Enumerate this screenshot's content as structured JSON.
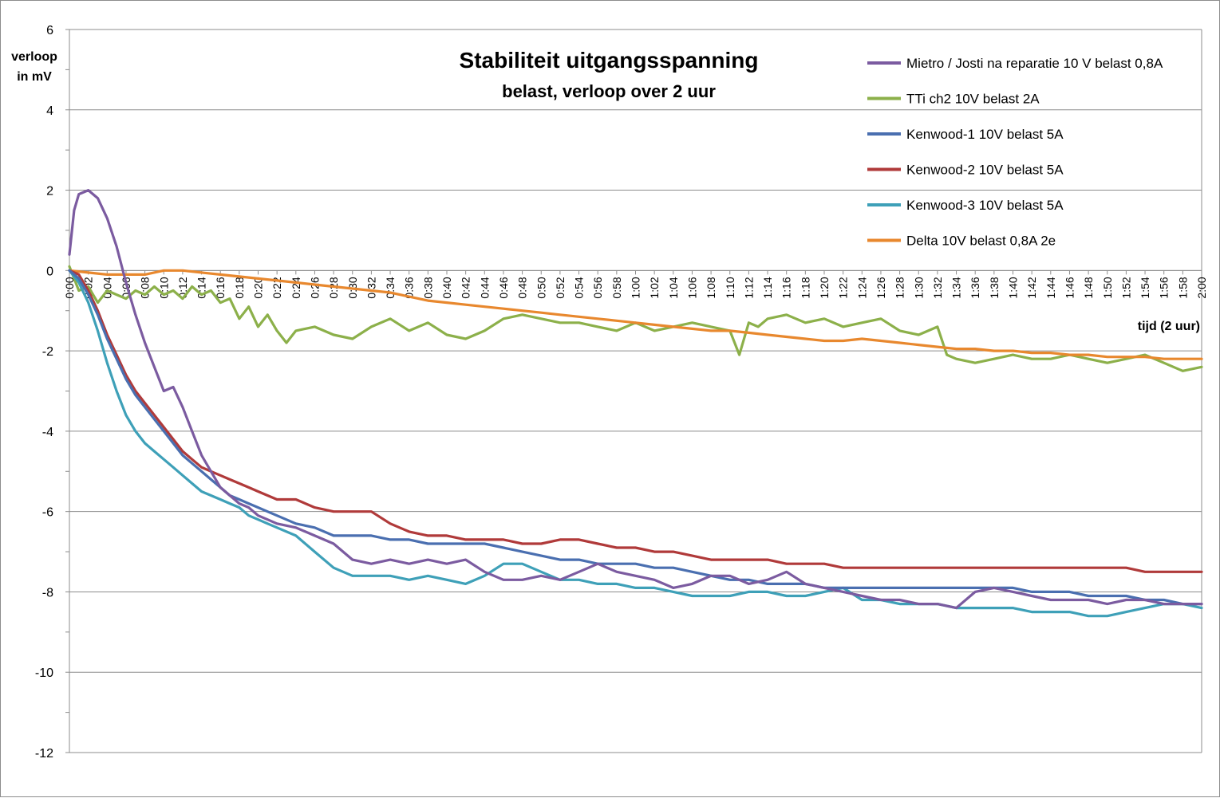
{
  "chart_data": {
    "type": "line",
    "title": "Stabiliteit uitgangsspanning",
    "subtitle": "belast, verloop over 2 uur",
    "ylabel_line1": "verloop",
    "ylabel_line2": "in mV",
    "xlabel": "tijd  (2 uur)",
    "ylim": [
      -12,
      6
    ],
    "y_major_step": 2,
    "y_ticks": [
      "6",
      "4",
      "2",
      "0",
      "-2",
      "-4",
      "-6",
      "-8",
      "-10",
      "-12"
    ],
    "x_range_minutes": [
      0,
      120
    ],
    "x_tick_step_minutes": 2,
    "x_tick_labels": [
      "0:00",
      "0:02",
      "0:04",
      "0:06",
      "0:08",
      "0:10",
      "0:12",
      "0:14",
      "0:16",
      "0:18",
      "0:20",
      "0:22",
      "0:24",
      "0:26",
      "0:28",
      "0:30",
      "0:32",
      "0:34",
      "0:36",
      "0:38",
      "0:40",
      "0:42",
      "0:44",
      "0:46",
      "0:48",
      "0:50",
      "0:52",
      "0:54",
      "0:56",
      "0:58",
      "1:00",
      "1:02",
      "1:04",
      "1:06",
      "1:08",
      "1:10",
      "1:12",
      "1:14",
      "1:16",
      "1:18",
      "1:20",
      "1:22",
      "1:24",
      "1:26",
      "1:28",
      "1:30",
      "1:32",
      "1:34",
      "1:36",
      "1:38",
      "1:40",
      "1:42",
      "1:44",
      "1:46",
      "1:48",
      "1:50",
      "1:52",
      "1:54",
      "1:56",
      "1:58",
      "2:00"
    ],
    "grid": "horizontal major gridlines",
    "legend_position": "top-right",
    "series": [
      {
        "name": "Mietro / Josti na reparatie 10 V belast 0,8A",
        "color": "#7B5BA0",
        "x": [
          0,
          0.5,
          1,
          2,
          3,
          4,
          5,
          6,
          7,
          8,
          9,
          10,
          11,
          12,
          13,
          14,
          15,
          16,
          17,
          18,
          19,
          20,
          21,
          22,
          24,
          26,
          28,
          30,
          32,
          34,
          36,
          38,
          40,
          42,
          44,
          46,
          48,
          50,
          52,
          54,
          56,
          58,
          60,
          62,
          64,
          66,
          68,
          70,
          72,
          74,
          76,
          78,
          80,
          82,
          84,
          86,
          88,
          90,
          92,
          94,
          96,
          98,
          100,
          102,
          104,
          106,
          108,
          110,
          112,
          114,
          116,
          118,
          120
        ],
        "y": [
          0.4,
          1.5,
          1.9,
          2.0,
          1.8,
          1.3,
          0.6,
          -0.3,
          -1.1,
          -1.8,
          -2.4,
          -3.0,
          -2.9,
          -3.4,
          -4.0,
          -4.6,
          -5.0,
          -5.4,
          -5.6,
          -5.8,
          -5.9,
          -6.1,
          -6.2,
          -6.3,
          -6.4,
          -6.6,
          -6.8,
          -7.2,
          -7.3,
          -7.2,
          -7.3,
          -7.2,
          -7.3,
          -7.2,
          -7.5,
          -7.7,
          -7.7,
          -7.6,
          -7.7,
          -7.5,
          -7.3,
          -7.5,
          -7.6,
          -7.7,
          -7.9,
          -7.8,
          -7.6,
          -7.6,
          -7.8,
          -7.7,
          -7.5,
          -7.8,
          -7.9,
          -8.0,
          -8.1,
          -8.2,
          -8.2,
          -8.3,
          -8.3,
          -8.4,
          -8.0,
          -7.9,
          -8.0,
          -8.1,
          -8.2,
          -8.2,
          -8.2,
          -8.3,
          -8.2,
          -8.2,
          -8.3,
          -8.3,
          -8.3
        ]
      },
      {
        "name": "TTi ch2 10V belast 2A",
        "color": "#8CB04A",
        "x": [
          0,
          1,
          2,
          3,
          4,
          5,
          6,
          7,
          8,
          9,
          10,
          11,
          12,
          13,
          14,
          15,
          16,
          17,
          18,
          19,
          20,
          21,
          22,
          23,
          24,
          26,
          28,
          30,
          32,
          34,
          36,
          38,
          40,
          42,
          44,
          46,
          48,
          50,
          52,
          54,
          56,
          58,
          60,
          62,
          64,
          66,
          68,
          70,
          71,
          72,
          73,
          74,
          76,
          78,
          80,
          82,
          84,
          86,
          88,
          90,
          92,
          93,
          94,
          96,
          98,
          100,
          102,
          104,
          106,
          108,
          110,
          112,
          114,
          116,
          118,
          120
        ],
        "y": [
          0.1,
          -0.5,
          -0.4,
          -0.8,
          -0.5,
          -0.6,
          -0.7,
          -0.5,
          -0.6,
          -0.4,
          -0.6,
          -0.5,
          -0.7,
          -0.4,
          -0.6,
          -0.5,
          -0.8,
          -0.7,
          -1.2,
          -0.9,
          -1.4,
          -1.1,
          -1.5,
          -1.8,
          -1.5,
          -1.4,
          -1.6,
          -1.7,
          -1.4,
          -1.2,
          -1.5,
          -1.3,
          -1.6,
          -1.7,
          -1.5,
          -1.2,
          -1.1,
          -1.2,
          -1.3,
          -1.3,
          -1.4,
          -1.5,
          -1.3,
          -1.5,
          -1.4,
          -1.3,
          -1.4,
          -1.5,
          -2.1,
          -1.3,
          -1.4,
          -1.2,
          -1.1,
          -1.3,
          -1.2,
          -1.4,
          -1.3,
          -1.2,
          -1.5,
          -1.6,
          -1.4,
          -2.1,
          -2.2,
          -2.3,
          -2.2,
          -2.1,
          -2.2,
          -2.2,
          -2.1,
          -2.2,
          -2.3,
          -2.2,
          -2.1,
          -2.3,
          -2.5,
          -2.4
        ]
      },
      {
        "name": "Kenwood-1 10V belast 5A",
        "color": "#4A6FB0",
        "x": [
          0,
          1,
          2,
          3,
          4,
          5,
          6,
          7,
          8,
          9,
          10,
          11,
          12,
          13,
          14,
          15,
          16,
          17,
          18,
          19,
          20,
          21,
          22,
          24,
          26,
          28,
          30,
          32,
          34,
          36,
          38,
          40,
          42,
          44,
          46,
          48,
          50,
          52,
          54,
          56,
          58,
          60,
          62,
          64,
          66,
          68,
          70,
          72,
          74,
          76,
          78,
          80,
          82,
          84,
          86,
          88,
          90,
          92,
          94,
          96,
          98,
          100,
          102,
          104,
          106,
          108,
          110,
          112,
          114,
          116,
          118,
          120
        ],
        "y": [
          0.0,
          -0.2,
          -0.6,
          -1.1,
          -1.7,
          -2.2,
          -2.7,
          -3.1,
          -3.4,
          -3.7,
          -4.0,
          -4.3,
          -4.6,
          -4.8,
          -5.0,
          -5.2,
          -5.4,
          -5.6,
          -5.7,
          -5.8,
          -5.9,
          -6.0,
          -6.1,
          -6.3,
          -6.4,
          -6.6,
          -6.6,
          -6.6,
          -6.7,
          -6.7,
          -6.8,
          -6.8,
          -6.8,
          -6.8,
          -6.9,
          -7.0,
          -7.1,
          -7.2,
          -7.2,
          -7.3,
          -7.3,
          -7.3,
          -7.4,
          -7.4,
          -7.5,
          -7.6,
          -7.7,
          -7.7,
          -7.8,
          -7.8,
          -7.8,
          -7.9,
          -7.9,
          -7.9,
          -7.9,
          -7.9,
          -7.9,
          -7.9,
          -7.9,
          -7.9,
          -7.9,
          -7.9,
          -8.0,
          -8.0,
          -8.0,
          -8.1,
          -8.1,
          -8.1,
          -8.2,
          -8.2,
          -8.3,
          -8.3
        ]
      },
      {
        "name": "Kenwood-2 10V belast 5A",
        "color": "#B03A3A",
        "x": [
          0,
          1,
          2,
          3,
          4,
          5,
          6,
          7,
          8,
          9,
          10,
          11,
          12,
          13,
          14,
          15,
          16,
          17,
          18,
          19,
          20,
          21,
          22,
          24,
          26,
          28,
          30,
          32,
          34,
          36,
          38,
          40,
          42,
          44,
          46,
          48,
          50,
          52,
          54,
          56,
          58,
          60,
          62,
          64,
          66,
          68,
          70,
          72,
          74,
          76,
          78,
          80,
          82,
          84,
          86,
          88,
          90,
          92,
          94,
          96,
          98,
          100,
          102,
          104,
          106,
          108,
          110,
          112,
          114,
          116,
          118,
          120
        ],
        "y": [
          0.0,
          -0.1,
          -0.5,
          -1.0,
          -1.6,
          -2.1,
          -2.6,
          -3.0,
          -3.3,
          -3.6,
          -3.9,
          -4.2,
          -4.5,
          -4.7,
          -4.9,
          -5.0,
          -5.1,
          -5.2,
          -5.3,
          -5.4,
          -5.5,
          -5.6,
          -5.7,
          -5.7,
          -5.9,
          -6.0,
          -6.0,
          -6.0,
          -6.3,
          -6.5,
          -6.6,
          -6.6,
          -6.7,
          -6.7,
          -6.7,
          -6.8,
          -6.8,
          -6.7,
          -6.7,
          -6.8,
          -6.9,
          -6.9,
          -7.0,
          -7.0,
          -7.1,
          -7.2,
          -7.2,
          -7.2,
          -7.2,
          -7.3,
          -7.3,
          -7.3,
          -7.4,
          -7.4,
          -7.4,
          -7.4,
          -7.4,
          -7.4,
          -7.4,
          -7.4,
          -7.4,
          -7.4,
          -7.4,
          -7.4,
          -7.4,
          -7.4,
          -7.4,
          -7.4,
          -7.5,
          -7.5,
          -7.5,
          -7.5
        ]
      },
      {
        "name": "Kenwood-3 10V belast 5A",
        "color": "#3EA0B8",
        "x": [
          0,
          1,
          2,
          3,
          4,
          5,
          6,
          7,
          8,
          9,
          10,
          11,
          12,
          13,
          14,
          15,
          16,
          17,
          18,
          19,
          20,
          21,
          22,
          24,
          26,
          28,
          30,
          32,
          34,
          36,
          38,
          40,
          42,
          44,
          46,
          48,
          50,
          52,
          54,
          56,
          58,
          60,
          62,
          64,
          66,
          68,
          70,
          72,
          74,
          76,
          78,
          80,
          82,
          84,
          86,
          88,
          90,
          92,
          94,
          96,
          98,
          100,
          102,
          104,
          106,
          108,
          110,
          112,
          114,
          116,
          118,
          120
        ],
        "y": [
          0.0,
          -0.3,
          -0.8,
          -1.5,
          -2.3,
          -3.0,
          -3.6,
          -4.0,
          -4.3,
          -4.5,
          -4.7,
          -4.9,
          -5.1,
          -5.3,
          -5.5,
          -5.6,
          -5.7,
          -5.8,
          -5.9,
          -6.1,
          -6.2,
          -6.3,
          -6.4,
          -6.6,
          -7.0,
          -7.4,
          -7.6,
          -7.6,
          -7.6,
          -7.7,
          -7.6,
          -7.7,
          -7.8,
          -7.6,
          -7.3,
          -7.3,
          -7.5,
          -7.7,
          -7.7,
          -7.8,
          -7.8,
          -7.9,
          -7.9,
          -8.0,
          -8.1,
          -8.1,
          -8.1,
          -8.0,
          -8.0,
          -8.1,
          -8.1,
          -8.0,
          -7.9,
          -8.2,
          -8.2,
          -8.3,
          -8.3,
          -8.3,
          -8.4,
          -8.4,
          -8.4,
          -8.4,
          -8.5,
          -8.5,
          -8.5,
          -8.6,
          -8.6,
          -8.5,
          -8.4,
          -8.3,
          -8.3,
          -8.4
        ]
      },
      {
        "name": "Delta 10V belast 0,8A 2e",
        "color": "#E8882E",
        "x": [
          0,
          2,
          4,
          6,
          8,
          10,
          12,
          14,
          16,
          18,
          20,
          22,
          24,
          26,
          28,
          30,
          32,
          34,
          36,
          38,
          40,
          42,
          44,
          46,
          48,
          50,
          52,
          54,
          56,
          58,
          60,
          62,
          64,
          66,
          68,
          70,
          72,
          74,
          76,
          78,
          80,
          82,
          84,
          86,
          88,
          90,
          92,
          94,
          96,
          98,
          100,
          102,
          104,
          106,
          108,
          110,
          112,
          114,
          116,
          118,
          120
        ],
        "y": [
          0.0,
          -0.05,
          -0.1,
          -0.1,
          -0.1,
          0.0,
          0.0,
          -0.05,
          -0.1,
          -0.15,
          -0.2,
          -0.25,
          -0.3,
          -0.35,
          -0.4,
          -0.45,
          -0.5,
          -0.55,
          -0.65,
          -0.75,
          -0.8,
          -0.85,
          -0.9,
          -0.95,
          -1.0,
          -1.05,
          -1.1,
          -1.15,
          -1.2,
          -1.25,
          -1.3,
          -1.35,
          -1.4,
          -1.45,
          -1.5,
          -1.5,
          -1.55,
          -1.6,
          -1.65,
          -1.7,
          -1.75,
          -1.75,
          -1.7,
          -1.75,
          -1.8,
          -1.85,
          -1.9,
          -1.95,
          -1.95,
          -2.0,
          -2.0,
          -2.05,
          -2.05,
          -2.1,
          -2.1,
          -2.15,
          -2.15,
          -2.15,
          -2.2,
          -2.2,
          -2.2
        ]
      }
    ]
  }
}
